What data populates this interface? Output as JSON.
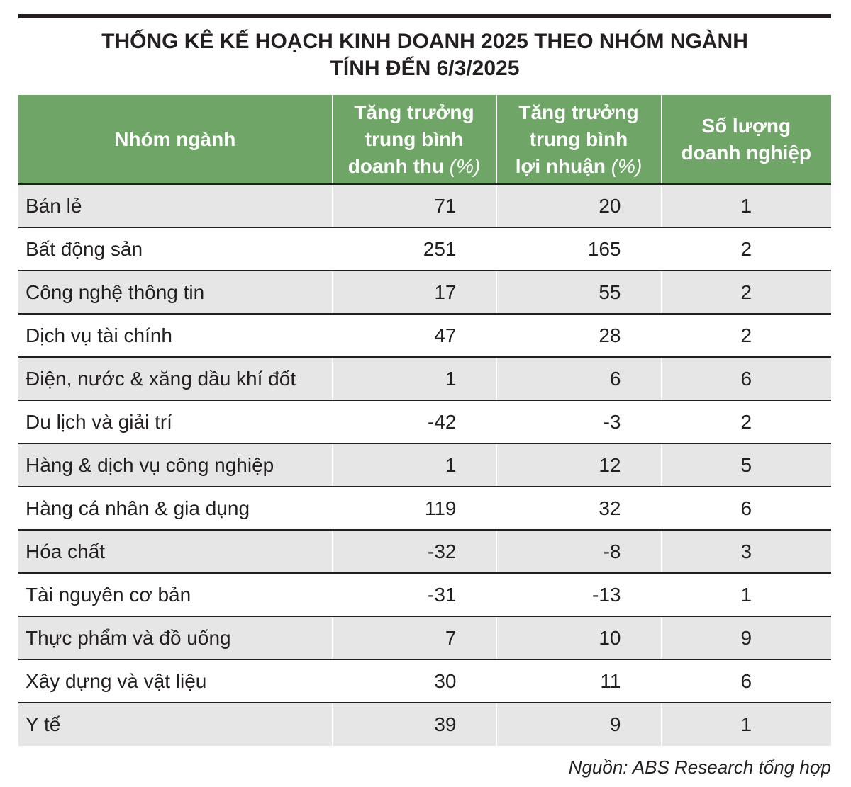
{
  "title": {
    "line1": "THỐNG KÊ KẾ HOẠCH KINH DOANH 2025 THEO NHÓM NGÀNH",
    "line2": "TÍNH ĐẾN 6/3/2025"
  },
  "headers": {
    "col1": "Nhóm ngành",
    "col2_line1": "Tăng trưởng",
    "col2_line2": "trung bình",
    "col2_line3": "doanh thu",
    "col2_unit": "(%)",
    "col3_line1": "Tăng trưởng",
    "col3_line2": "trung bình",
    "col3_line3": "lợi nhuận",
    "col3_unit": "(%)",
    "col4_line1": "Số lượng",
    "col4_line2": "doanh nghiệp"
  },
  "colors": {
    "header_bg": "#6fa567",
    "stripe_bg": "#e6e6e7",
    "rule": "#231f20"
  },
  "chart_data": {
    "type": "table",
    "title": "THỐNG KÊ KẾ HOẠCH KINH DOANH 2025 THEO NHÓM NGÀNH TÍNH ĐẾN 6/3/2025",
    "columns": [
      "Nhóm ngành",
      "Tăng trưởng trung bình doanh thu (%)",
      "Tăng trưởng trung bình lợi nhuận (%)",
      "Số lượng doanh nghiệp"
    ],
    "rows": [
      [
        "Bán lẻ",
        "71",
        "20",
        "1"
      ],
      [
        "Bất động sản",
        "251",
        "165",
        "2"
      ],
      [
        "Công nghệ thông tin",
        "17",
        "55",
        "2"
      ],
      [
        "Dịch vụ tài chính",
        "47",
        "28",
        "2"
      ],
      [
        "Điện, nước & xăng dầu khí đốt",
        "1",
        "6",
        "6"
      ],
      [
        "Du lịch và giải trí",
        "-42",
        "-3",
        "2"
      ],
      [
        "Hàng & dịch vụ công nghiệp",
        "1",
        "12",
        "5"
      ],
      [
        "Hàng cá nhân & gia dụng",
        "119",
        "32",
        "6"
      ],
      [
        "Hóa chất",
        "-32",
        "-8",
        "3"
      ],
      [
        "Tài nguyên cơ bản",
        "-31",
        "-13",
        "1"
      ],
      [
        "Thực phẩm và đồ uống",
        "7",
        "10",
        "9"
      ],
      [
        "Xây dựng và vật liệu",
        "30",
        "11",
        "6"
      ],
      [
        "Y tế",
        "39",
        "9",
        "1"
      ]
    ]
  },
  "source": "Nguồn: ABS Research tổng hợp"
}
